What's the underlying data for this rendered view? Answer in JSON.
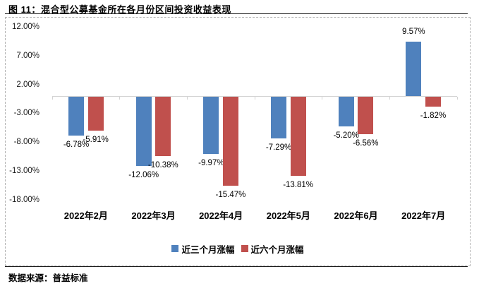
{
  "figure": {
    "title": "图 11：混合型公募基金所在各月份区间投资收益表现",
    "source": "数据来源：普益标准"
  },
  "chart_data": {
    "type": "bar",
    "title": "混合型公募基金所在各月份区间投资收益表现",
    "categories": [
      "2022年2月",
      "2022年3月",
      "2022年4月",
      "2022年5月",
      "2022年6月",
      "2022年7月"
    ],
    "series": [
      {
        "name": "近三个月涨幅",
        "color": "#4f81bd",
        "values": [
          -6.78,
          -12.06,
          -9.97,
          -7.29,
          -5.2,
          9.57
        ],
        "labels": [
          "-6.78%",
          "-12.06%",
          "-9.97%",
          "-7.29%",
          "-5.20%",
          "9.57%"
        ]
      },
      {
        "name": "近六个月涨幅",
        "color": "#c0504d",
        "values": [
          -5.91,
          -10.38,
          -15.47,
          -13.81,
          -6.56,
          -1.82
        ],
        "labels": [
          "-5.91%",
          "-10.38%",
          "-15.47%",
          "-13.81%",
          "-6.56%",
          "-1.82%"
        ]
      }
    ],
    "y_axis": {
      "ticks": [
        {
          "label": "12.00%",
          "value": 12
        },
        {
          "label": "7.00%",
          "value": 7
        },
        {
          "label": "2.00%",
          "value": 2
        },
        {
          "label": "-3.00%",
          "value": -3
        },
        {
          "label": "-8.00%",
          "value": -8
        },
        {
          "label": "-13.00%",
          "value": -13
        },
        {
          "label": "-18.00%",
          "value": -18
        }
      ],
      "min": -18,
      "max": 12
    },
    "xlabel": "",
    "ylabel": "",
    "grid": false,
    "legend_position": "bottom",
    "data_labels": true
  }
}
